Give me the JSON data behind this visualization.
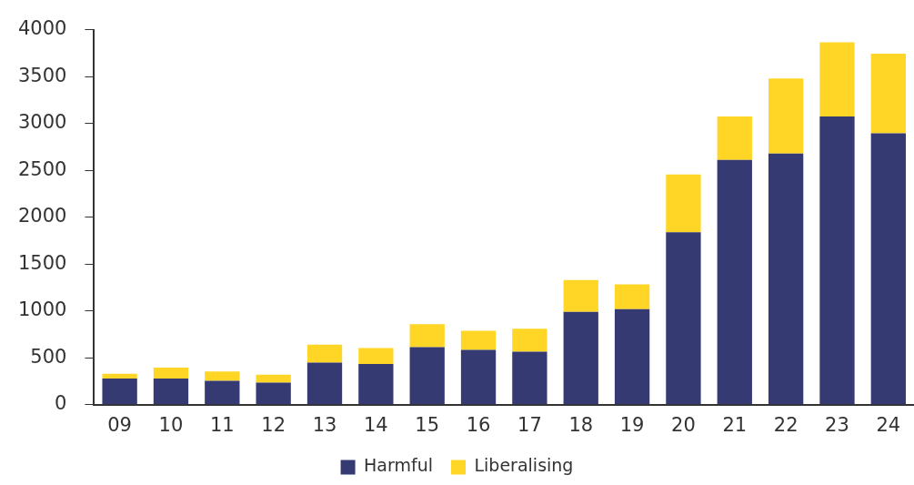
{
  "chart_data": {
    "type": "bar",
    "stacked": true,
    "categories": [
      "09",
      "10",
      "11",
      "12",
      "13",
      "14",
      "15",
      "16",
      "17",
      "18",
      "19",
      "20",
      "21",
      "22",
      "23",
      "24"
    ],
    "series": [
      {
        "name": "Harmful",
        "color": "#353b72",
        "values": [
          280,
          280,
          255,
          235,
          450,
          435,
          615,
          585,
          565,
          990,
          1020,
          1840,
          2610,
          2680,
          3075,
          2895
        ]
      },
      {
        "name": "Liberalising",
        "color": "#ffd626",
        "values": [
          50,
          115,
          100,
          85,
          190,
          170,
          245,
          205,
          245,
          340,
          265,
          615,
          465,
          800,
          790,
          850
        ]
      }
    ],
    "ylim": [
      0,
      4000
    ],
    "yticks": [
      0,
      500,
      1000,
      1500,
      2000,
      2500,
      3000,
      3500,
      4000
    ],
    "grid": false,
    "legend": "bottom"
  }
}
